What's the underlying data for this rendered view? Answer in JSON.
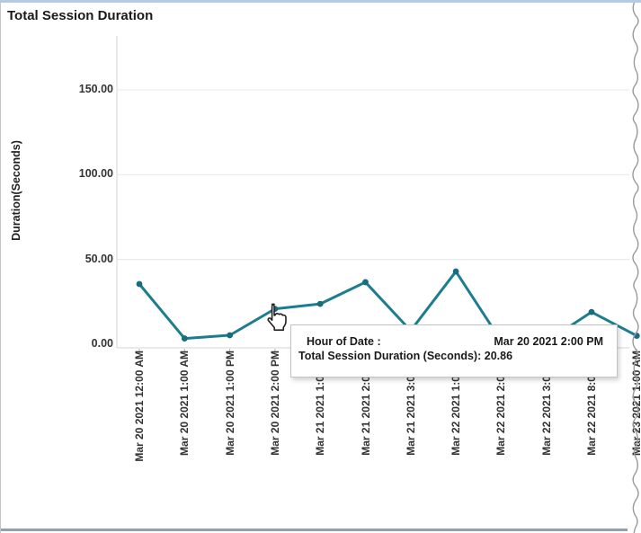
{
  "window": {
    "title": "Total Session Duration"
  },
  "chart_data": {
    "type": "line",
    "title": "Total Session Duration",
    "xlabel": "",
    "ylabel": "Duration(Seconds)",
    "categories": [
      "Mar 20 2021 12:00 AM",
      "Mar 20 2021 1:00 AM",
      "Mar 20 2021 1:00 PM",
      "Mar 20 2021 2:00 PM",
      "Mar 21 2021 1:00 PM",
      "Mar 21 2021 2:00 PM",
      "Mar 21 2021 3:00 PM",
      "Mar 22 2021 1:00 PM",
      "Mar 22 2021 2:00 PM",
      "Mar 22 2021 3:00 PM",
      "Mar 22 2021 8:00 PM",
      "Mar 23 2021 1:00 AM"
    ],
    "values": [
      35.5,
      3.4,
      5.3,
      20.86,
      23.8,
      36.6,
      8.0,
      42.9,
      2.0,
      1.5,
      19.0,
      5.0
    ],
    "y_tick_labels": [
      "0.00",
      "50.00",
      "100.00",
      "150.00"
    ],
    "y_tick_values": [
      0,
      50,
      100,
      150
    ],
    "ylim": [
      0,
      175
    ],
    "grid": "horizontal",
    "legend": "none"
  },
  "tooltip": {
    "row1_label": "Hour of Date :",
    "row1_value": "Mar 20 2021 2:00 PM",
    "row2_label": "Total Session Duration (Seconds):",
    "row2_value": "20.86"
  },
  "colors": {
    "line": "#1b7d8f",
    "marker": "#176c7d",
    "gridline": "#e9e9e9",
    "axis_line": "#d4d4d4",
    "tick_mark": "#b5b5b5",
    "border_top": "#b3cce4",
    "border_bottom": "#93a0ad",
    "border_left": "#c5c5c5",
    "torn_edge": "#9a9a9a",
    "text": "#333333"
  }
}
